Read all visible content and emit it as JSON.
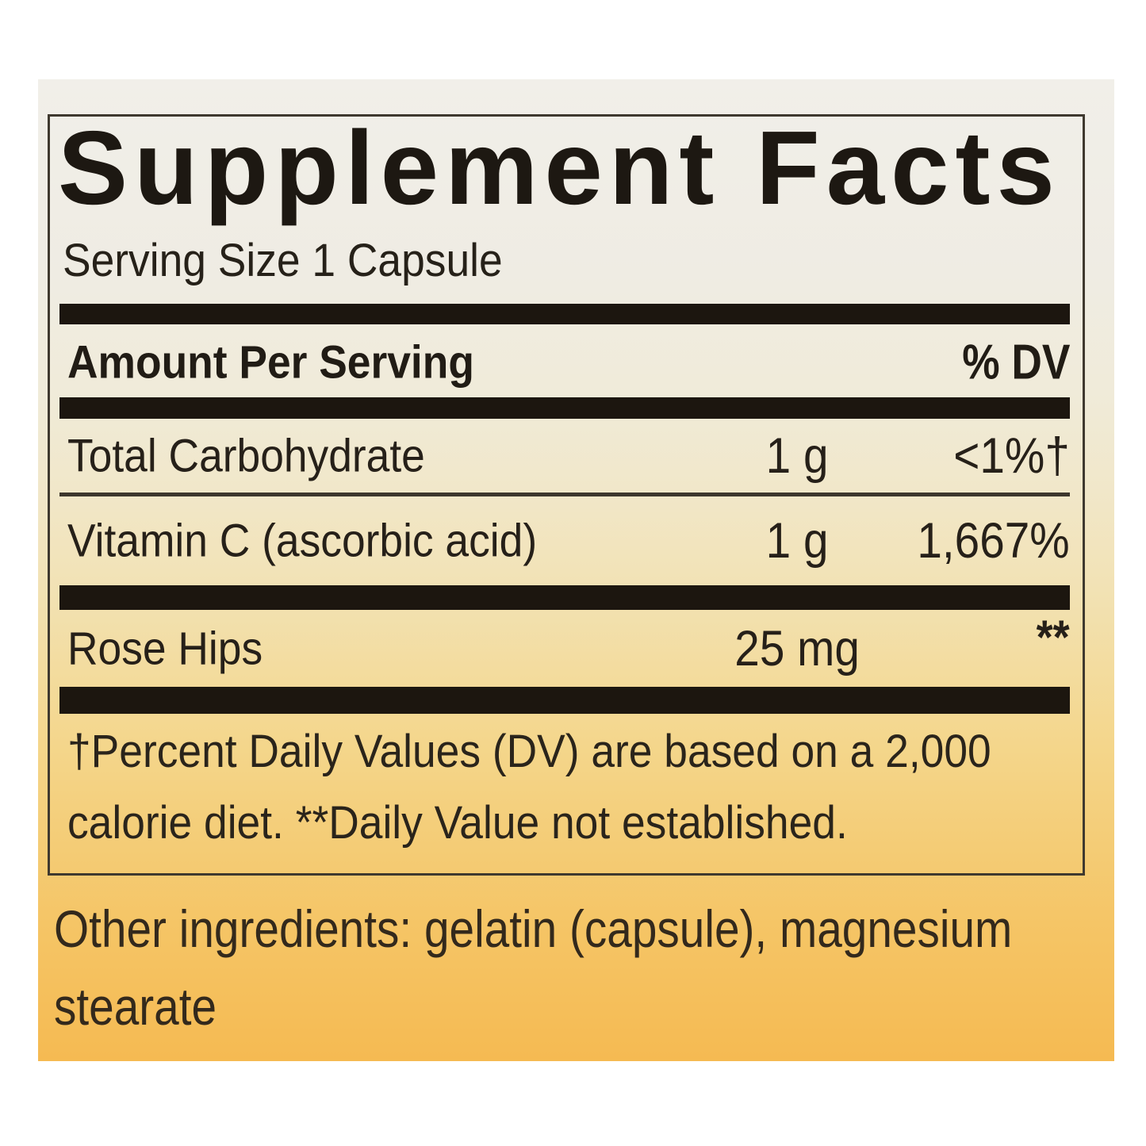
{
  "label": {
    "title": "Supplement Facts",
    "serving_size": "Serving Size 1 Capsule",
    "header": {
      "amount_label": "Amount Per Serving",
      "dv_label": "% DV"
    },
    "rows": [
      {
        "name": "Total Carbohydrate",
        "amount": "1 g",
        "dv": "<1%†"
      },
      {
        "name": "Vitamin C (ascorbic acid)",
        "amount": "1 g",
        "dv": "1,667%"
      },
      {
        "name": "Rose Hips",
        "amount": "25 mg",
        "dv": "**"
      }
    ],
    "footnote": {
      "line1": "†Percent Daily Values (DV) are based on a 2,000",
      "line2": "calorie diet. **Daily Value not established."
    },
    "other_ingredients": {
      "line1": "Other ingredients: gelatin (capsule), magnesium",
      "line2": "stearate"
    },
    "colors": {
      "divider_bar": "#1c160f",
      "panel_border": "#3f392f",
      "text": "#262019",
      "label_background_top": "#f1efe9",
      "label_background_bottom": "#f5ba52"
    }
  }
}
